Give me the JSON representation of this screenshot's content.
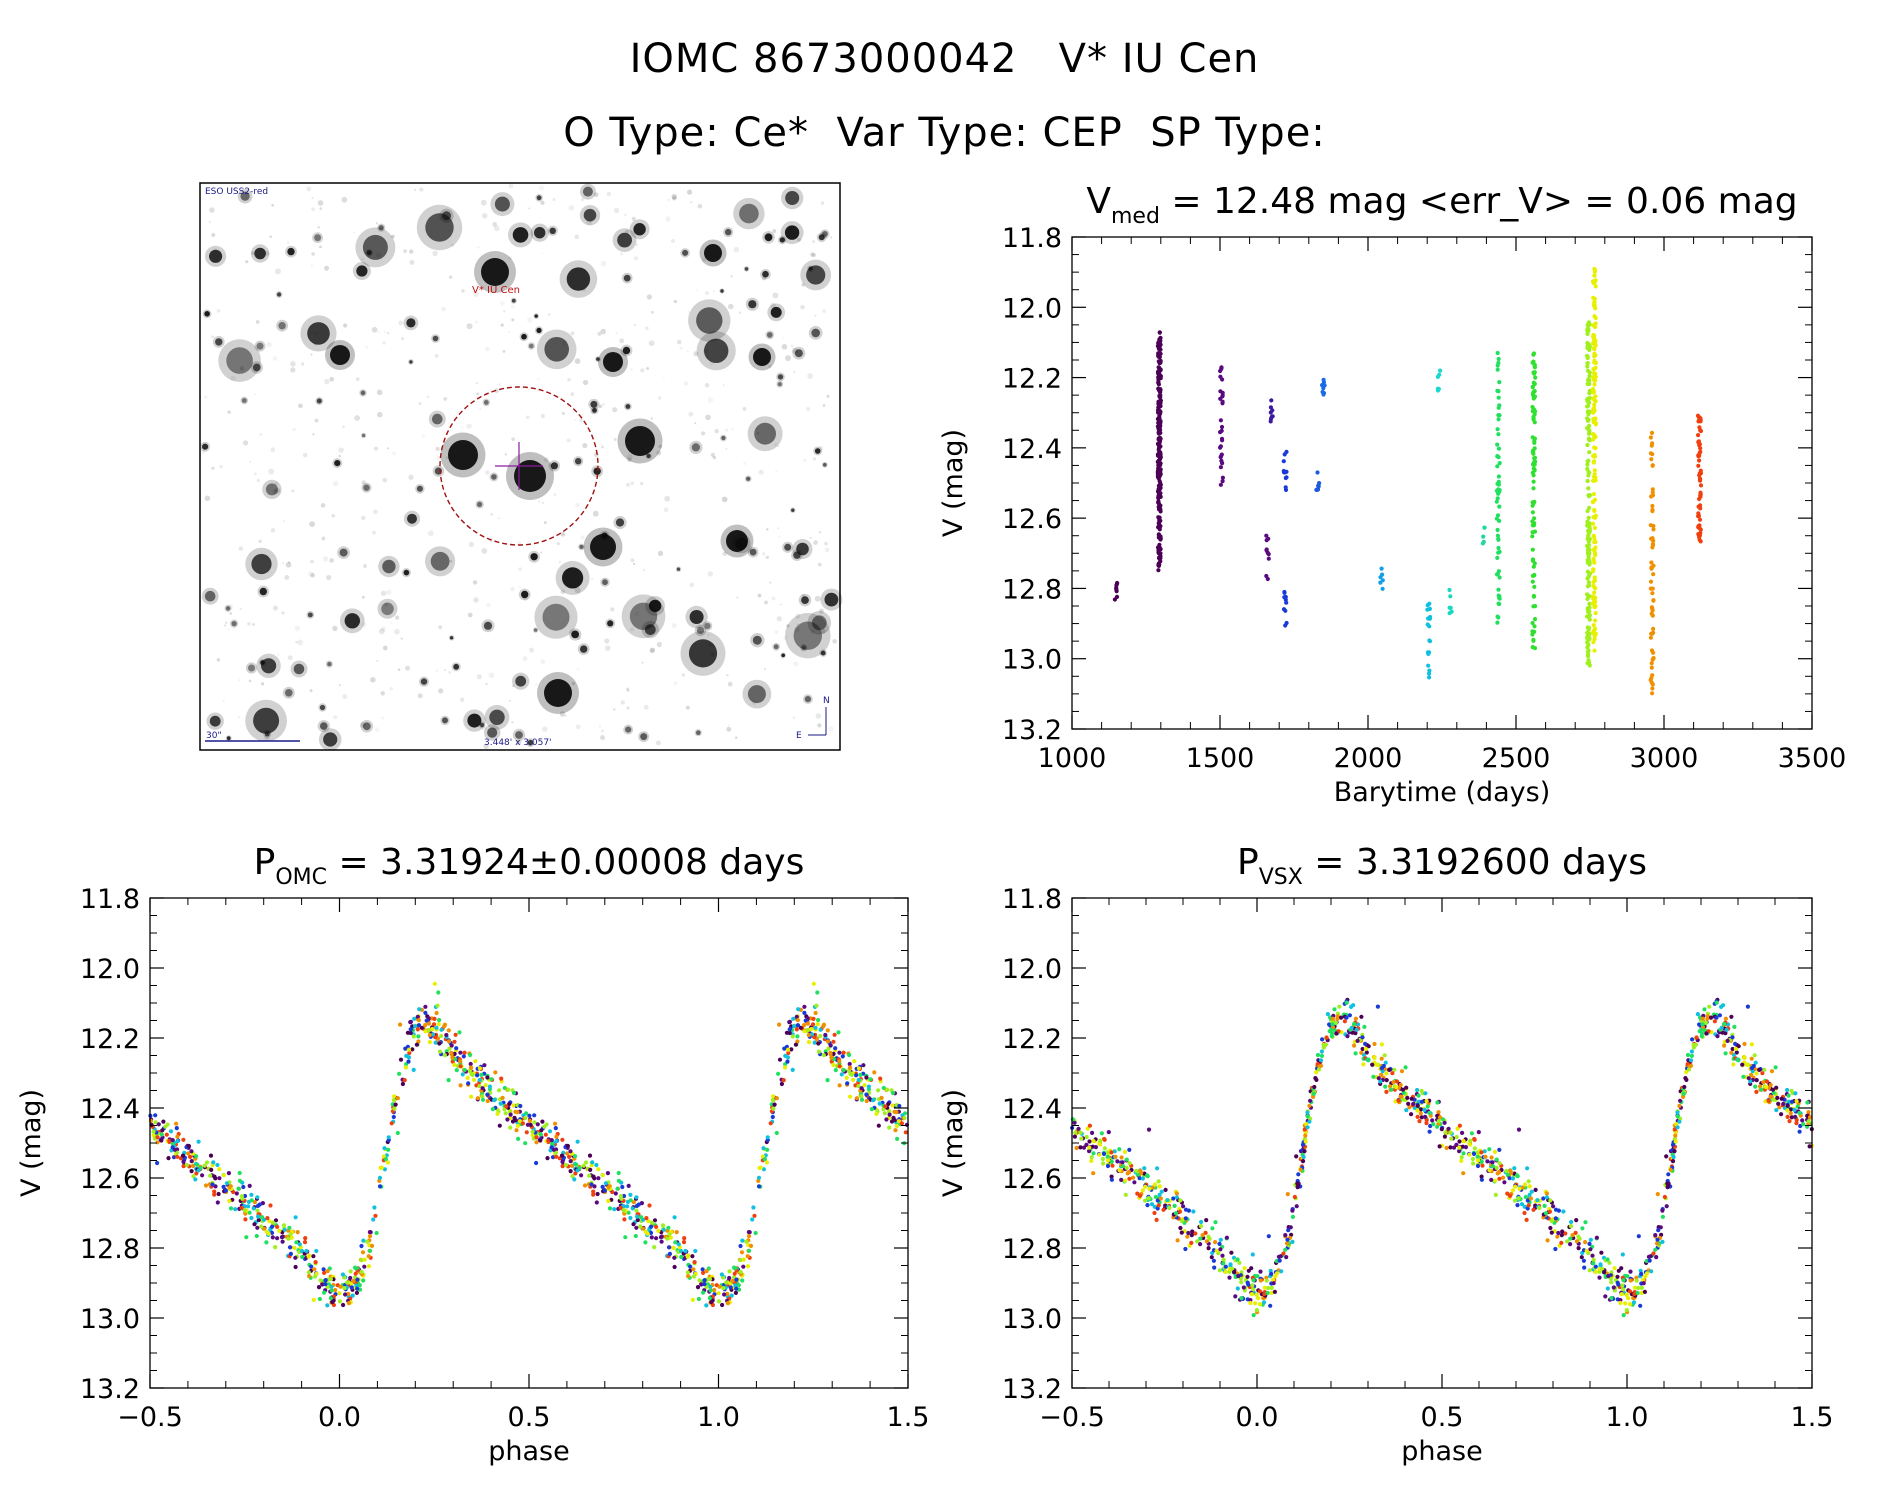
{
  "header": {
    "line1": "IOMC 8673000042   V* IU Cen",
    "line2": "O Type: Ce*  Var Type: CEP  SP Type:"
  },
  "finder": {
    "label_top_left": "ESO USS2-red",
    "target_label": "V* IU Cen",
    "scale_label": "30\"",
    "fov_label": "3.448' x 3.057'",
    "compass_n": "N",
    "compass_e": "E"
  },
  "chart_data": [
    {
      "id": "lightcurve",
      "type": "scatter",
      "title": {
        "main": "V",
        "sub": "med",
        "rest": " = 12.48 mag <err_V> = 0.06 mag"
      },
      "xlabel": "Barytime (days)",
      "ylabel": "V (mag)",
      "xlim": [
        1000,
        3500
      ],
      "ylim": [
        13.2,
        11.8
      ],
      "xticks": [
        1000,
        1500,
        2000,
        2500,
        3000,
        3500
      ],
      "xtick_labels": [
        "1000",
        "1500",
        "2000",
        "2500",
        "3000",
        "3500"
      ],
      "yticks": [
        11.8,
        12.0,
        12.2,
        12.4,
        12.6,
        12.8,
        13.0,
        13.2
      ],
      "ytick_labels": [
        "11.8",
        "12.0",
        "12.2",
        "12.4",
        "12.6",
        "12.8",
        "13.0",
        "13.2"
      ],
      "groups": [
        {
          "t": 1150,
          "ymin": 12.78,
          "ymax": 12.85,
          "n": 8,
          "color": "#4b0055"
        },
        {
          "t": 1295,
          "ymin": 12.07,
          "ymax": 12.75,
          "n": 220,
          "color": "#4b0055"
        },
        {
          "t": 1505,
          "ymin": 12.14,
          "ymax": 12.52,
          "n": 30,
          "color": "#5a0a80"
        },
        {
          "t": 1660,
          "ymin": 12.63,
          "ymax": 12.78,
          "n": 10,
          "color": "#5a0a80"
        },
        {
          "t": 1675,
          "ymin": 12.25,
          "ymax": 12.33,
          "n": 8,
          "color": "#3b1aa0"
        },
        {
          "t": 1720,
          "ymin": 12.4,
          "ymax": 12.52,
          "n": 12,
          "color": "#1a3ad8"
        },
        {
          "t": 1720,
          "ymin": 12.81,
          "ymax": 12.92,
          "n": 10,
          "color": "#1a3ad8"
        },
        {
          "t": 1830,
          "ymin": 12.45,
          "ymax": 12.52,
          "n": 8,
          "color": "#1a5ae0"
        },
        {
          "t": 1850,
          "ymin": 12.2,
          "ymax": 12.28,
          "n": 8,
          "color": "#1a6ae8"
        },
        {
          "t": 2045,
          "ymin": 12.74,
          "ymax": 12.81,
          "n": 6,
          "color": "#10a0e8"
        },
        {
          "t": 2205,
          "ymin": 12.83,
          "ymax": 13.06,
          "n": 18,
          "color": "#10c0e0"
        },
        {
          "t": 2240,
          "ymin": 12.16,
          "ymax": 12.24,
          "n": 6,
          "color": "#18d8d0"
        },
        {
          "t": 2280,
          "ymin": 12.8,
          "ymax": 12.88,
          "n": 6,
          "color": "#18d8c0"
        },
        {
          "t": 2390,
          "ymin": 12.62,
          "ymax": 12.68,
          "n": 5,
          "color": "#20d8a0"
        },
        {
          "t": 2440,
          "ymin": 12.11,
          "ymax": 12.9,
          "n": 60,
          "color": "#20e060"
        },
        {
          "t": 2560,
          "ymin": 12.12,
          "ymax": 12.99,
          "n": 90,
          "color": "#30e030"
        },
        {
          "t": 2745,
          "ymin": 12.04,
          "ymax": 13.02,
          "n": 160,
          "color": "#a0f020"
        },
        {
          "t": 2765,
          "ymin": 11.89,
          "ymax": 12.98,
          "n": 160,
          "color": "#e8f000"
        },
        {
          "t": 2960,
          "ymin": 12.35,
          "ymax": 13.1,
          "n": 60,
          "color": "#f09000"
        },
        {
          "t": 3120,
          "ymin": 12.3,
          "ymax": 12.68,
          "n": 60,
          "color": "#f04010"
        }
      ]
    },
    {
      "id": "phase_omc",
      "type": "scatter",
      "title": {
        "main": "P",
        "sub": "OMC",
        "rest": " = 3.31924±0.00008 days"
      },
      "xlabel": "phase",
      "ylabel": "V (mag)",
      "period_days": 3.31924,
      "period_err": 8e-05,
      "xlim": [
        -0.5,
        1.5
      ],
      "ylim": [
        13.2,
        11.8
      ],
      "xticks": [
        -0.5,
        0.0,
        0.5,
        1.0,
        1.5
      ],
      "xtick_labels": [
        "−0.5",
        "0.0",
        "0.5",
        "1.0",
        "1.5"
      ],
      "yticks": [
        11.8,
        12.0,
        12.2,
        12.4,
        12.6,
        12.8,
        13.0,
        13.2
      ],
      "ytick_labels": [
        "11.8",
        "12.0",
        "12.2",
        "12.4",
        "12.6",
        "12.8",
        "13.0",
        "13.2"
      ],
      "curve_phase": [
        0.0,
        0.04,
        0.08,
        0.12,
        0.16,
        0.2,
        0.25,
        0.3,
        0.4,
        0.5,
        0.6,
        0.7,
        0.8,
        0.9,
        0.96,
        1.0
      ],
      "curve_mag": [
        12.93,
        12.9,
        12.8,
        12.55,
        12.3,
        12.17,
        12.16,
        12.24,
        12.36,
        12.46,
        12.54,
        12.63,
        12.72,
        12.81,
        12.9,
        12.93
      ],
      "scatter_mag": 0.05,
      "palette": [
        "#4b0055",
        "#5a0a80",
        "#1a3ad8",
        "#10c0e0",
        "#20e060",
        "#a0f020",
        "#e8f000",
        "#f09000",
        "#f04010"
      ]
    },
    {
      "id": "phase_vsx",
      "type": "scatter",
      "title": {
        "main": "P",
        "sub": "VSX",
        "rest": " = 3.3192600 days"
      },
      "xlabel": "phase",
      "ylabel": "V (mag)",
      "period_days": 3.31926,
      "xlim": [
        -0.5,
        1.5
      ],
      "ylim": [
        13.2,
        11.8
      ],
      "xticks": [
        -0.5,
        0.0,
        0.5,
        1.0,
        1.5
      ],
      "xtick_labels": [
        "−0.5",
        "0.0",
        "0.5",
        "1.0",
        "1.5"
      ],
      "yticks": [
        11.8,
        12.0,
        12.2,
        12.4,
        12.6,
        12.8,
        13.0,
        13.2
      ],
      "ytick_labels": [
        "11.8",
        "12.0",
        "12.2",
        "12.4",
        "12.6",
        "12.8",
        "13.0",
        "13.2"
      ],
      "curve_phase": [
        0.0,
        0.04,
        0.08,
        0.12,
        0.16,
        0.2,
        0.25,
        0.3,
        0.4,
        0.5,
        0.6,
        0.7,
        0.8,
        0.9,
        0.96,
        1.0
      ],
      "curve_mag": [
        12.93,
        12.9,
        12.8,
        12.55,
        12.3,
        12.17,
        12.16,
        12.24,
        12.36,
        12.46,
        12.54,
        12.63,
        12.72,
        12.81,
        12.9,
        12.93
      ],
      "scatter_mag": 0.05,
      "palette": [
        "#4b0055",
        "#5a0a80",
        "#1a3ad8",
        "#10c0e0",
        "#20e060",
        "#a0f020",
        "#e8f000",
        "#f09000",
        "#f04010"
      ]
    }
  ]
}
